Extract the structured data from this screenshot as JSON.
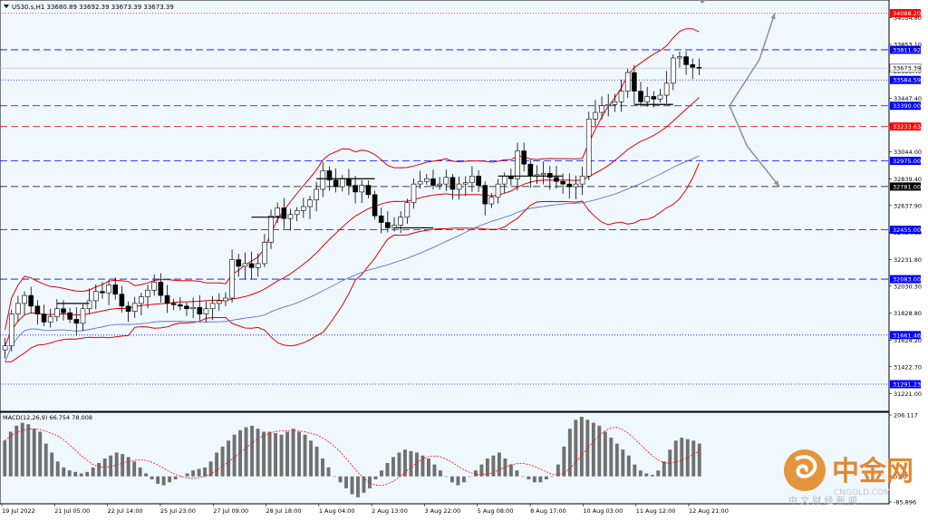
{
  "chart_data": [
    {
      "type": "candlestick",
      "title": "US30.s,H1  33680.89 33692.39 33673.39 33673.39",
      "symbol": "US30.s",
      "timeframe": "H1",
      "ohlc_last": [
        33680.89,
        33692.39,
        33673.39,
        33673.39
      ],
      "ylim": [
        31100,
        34160
      ],
      "y_ticks": [
        "34054.80",
        "33853.10",
        "33650.40",
        "33447.40",
        "33245.90",
        "33044.00",
        "32839.40",
        "32637.90",
        "32434.60",
        "32231.80",
        "32030.30",
        "31828.80",
        "31624.20",
        "31422.70",
        "31221.00"
      ],
      "x_labels": [
        "19 Jul 2022",
        "21 Jul 05:00",
        "22 Jul 14:00",
        "25 Jul 23:00",
        "27 Jul 09:00",
        "28 Jul 18:00",
        "1 Aug 04:00",
        "2 Aug 13:00",
        "3 Aug 22:00",
        "5 Aug 08:00",
        "8 Aug 17:00",
        "10 Aug 03:00",
        "11 Aug 12:00",
        "12 Aug 21:00"
      ],
      "levels": [
        {
          "value": 34088.2,
          "label": "34088.20",
          "style": "dotted",
          "color": "#ff0000"
        },
        {
          "value": 33811.92,
          "label": "33811.92",
          "style": "dashed",
          "color": "#0000ff"
        },
        {
          "value": 33673.39,
          "label": "33673.39",
          "style": "solid",
          "color": "#c0c0c0"
        },
        {
          "value": 33584.59,
          "label": "33584.59",
          "style": "dotted",
          "color": "#0000ff"
        },
        {
          "value": 33390.0,
          "label": "33390.00",
          "style": "dashed",
          "color": "#0000ff"
        },
        {
          "value": 33233.63,
          "label": "33233.63",
          "style": "dashed",
          "color": "#ff0000"
        },
        {
          "value": 32975.0,
          "label": "32975.00",
          "style": "dashed",
          "color": "#0000ff"
        },
        {
          "value": 32781.0,
          "label": "32781.00",
          "style": "dashed",
          "color": "#000000"
        },
        {
          "value": 32455.0,
          "label": "32455.00",
          "style": "dashed",
          "color": "#0000ff"
        },
        {
          "value": 32083.0,
          "label": "32083.00",
          "style": "dashed",
          "color": "#0000ff"
        },
        {
          "value": 31661.46,
          "label": "31661.46",
          "style": "dotted",
          "color": "#0000ff"
        },
        {
          "value": 31291.23,
          "label": "31291.23",
          "style": "dotted",
          "color": "#0000ff"
        }
      ],
      "close_series": [
        31580,
        31820,
        31900,
        31960,
        31880,
        31820,
        31760,
        31800,
        31860,
        31830,
        31780,
        31750,
        31860,
        31920,
        31990,
        31980,
        32040,
        31970,
        31880,
        31840,
        31900,
        31950,
        32000,
        32060,
        31960,
        31900,
        31890,
        31880,
        31860,
        31870,
        31820,
        31860,
        31900,
        31920,
        31940,
        32230,
        32180,
        32200,
        32170,
        32200,
        32360,
        32560,
        32620,
        32540,
        32570,
        32600,
        32630,
        32680,
        32760,
        32900,
        32830,
        32780,
        32840,
        32790,
        32740,
        32790,
        32720,
        32560,
        32510,
        32470,
        32490,
        32550,
        32660,
        32800,
        32820,
        32840,
        32790,
        32800,
        32850,
        32760,
        32800,
        32810,
        32860,
        32790,
        32650,
        32700,
        32800,
        32860,
        32840,
        33050,
        32950,
        32860,
        32870,
        32880,
        32850,
        32820,
        32800,
        32780,
        32800,
        32860,
        33290,
        33340,
        33390,
        33400,
        33420,
        33500,
        33640,
        33500,
        33420,
        33460,
        33440,
        33470,
        33560,
        33750,
        33760,
        33700,
        33680,
        33673
      ],
      "moving_averages": [
        "Bollinger upper",
        "Bollinger middle",
        "Bollinger lower",
        "Moving average"
      ],
      "colors": {
        "candle": "#000000",
        "bollinger": "#e00000",
        "ma": "#4a5fd8",
        "arrow": "#909090",
        "background": "#f0f8ff"
      }
    },
    {
      "type": "bar",
      "title": "MACD(12,26,9) 66.754 78.008",
      "indicator": "MACD(12,26,9)",
      "values_last": [
        66.754,
        78.008
      ],
      "y_ticks": [
        "206.117",
        "0.00",
        "-85.896"
      ],
      "ylim": [
        -85.896,
        206.117
      ],
      "histogram": [
        120,
        150,
        170,
        180,
        175,
        160,
        150,
        110,
        80,
        50,
        30,
        20,
        15,
        10,
        15,
        30,
        45,
        60,
        70,
        80,
        75,
        65,
        50,
        30,
        10,
        -10,
        -25,
        -30,
        -20,
        -10,
        0,
        10,
        20,
        25,
        30,
        50,
        80,
        100,
        120,
        140,
        155,
        165,
        170,
        160,
        150,
        150,
        145,
        140,
        150,
        160,
        150,
        140,
        120,
        100,
        60,
        30,
        0,
        -20,
        -40,
        -60,
        -70,
        -55,
        -40,
        -10,
        20,
        45,
        65,
        80,
        90,
        85,
        80,
        70,
        60,
        40,
        20,
        0,
        -20,
        -30,
        -20,
        0,
        20,
        40,
        60,
        70,
        80,
        60,
        40,
        20,
        0,
        -10,
        -20,
        -20,
        -10,
        0,
        40,
        100,
        160,
        190,
        200,
        190,
        180,
        170,
        150,
        130,
        110,
        90,
        70,
        40,
        20,
        10,
        5,
        20,
        50,
        90,
        120,
        130,
        125,
        120,
        110
      ],
      "signal_color": "#ff0000",
      "hist_color": "#707070"
    }
  ],
  "watermark": {
    "brand_cn": "中金网",
    "brand_en": "CNGOLD.COM",
    "brand_sub": "中 文 财 经 新 闻"
  }
}
